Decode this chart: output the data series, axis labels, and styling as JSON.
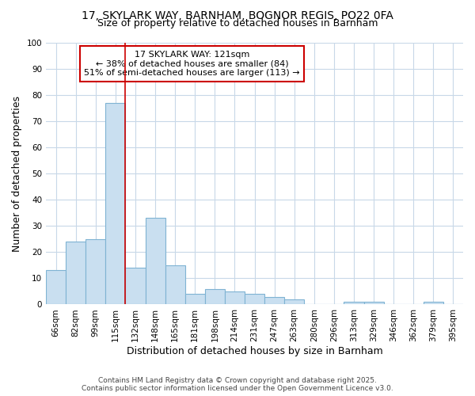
{
  "title": "17, SKYLARK WAY, BARNHAM, BOGNOR REGIS, PO22 0FA",
  "subtitle": "Size of property relative to detached houses in Barnham",
  "xlabel": "Distribution of detached houses by size in Barnham",
  "ylabel": "Number of detached properties",
  "footer1": "Contains HM Land Registry data © Crown copyright and database right 2025.",
  "footer2": "Contains public sector information licensed under the Open Government Licence v3.0.",
  "categories": [
    "66sqm",
    "82sqm",
    "99sqm",
    "115sqm",
    "132sqm",
    "148sqm",
    "165sqm",
    "181sqm",
    "198sqm",
    "214sqm",
    "231sqm",
    "247sqm",
    "263sqm",
    "280sqm",
    "296sqm",
    "313sqm",
    "329sqm",
    "346sqm",
    "362sqm",
    "379sqm",
    "395sqm"
  ],
  "values": [
    13,
    24,
    25,
    77,
    14,
    33,
    15,
    4,
    6,
    5,
    4,
    3,
    2,
    0,
    0,
    1,
    1,
    0,
    0,
    1,
    0
  ],
  "bar_color": "#c9dff0",
  "bar_edge_color": "#7fb3d3",
  "red_line_x": 3.5,
  "annotation_text": "17 SKYLARK WAY: 121sqm\n← 38% of detached houses are smaller (84)\n51% of semi-detached houses are larger (113) →",
  "annotation_box_color": "#ffffff",
  "annotation_box_edge_color": "#cc0000",
  "ylim": [
    0,
    100
  ],
  "yticks": [
    0,
    10,
    20,
    30,
    40,
    50,
    60,
    70,
    80,
    90,
    100
  ],
  "bg_color": "#ffffff",
  "grid_color": "#c8d8e8",
  "title_fontsize": 10,
  "subtitle_fontsize": 9,
  "axis_label_fontsize": 9,
  "tick_fontsize": 7.5,
  "annotation_fontsize": 8,
  "footer_fontsize": 6.5
}
